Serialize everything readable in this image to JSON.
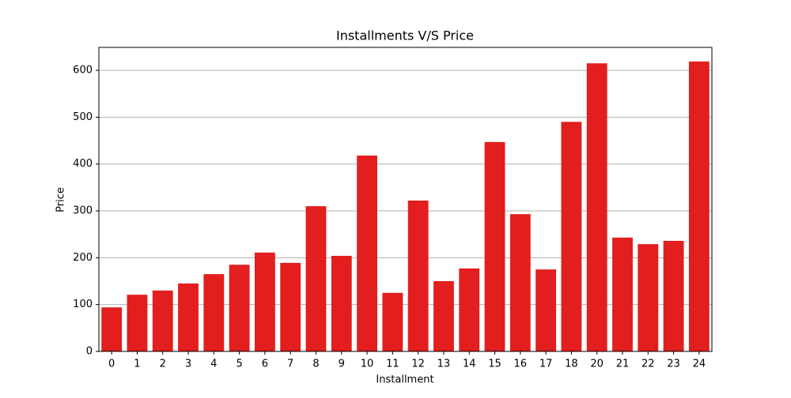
{
  "chart_data": {
    "type": "bar",
    "title": "Installments V/S Price",
    "x_label": "Installment",
    "y_label": "Price",
    "categories": [
      "0",
      "1",
      "2",
      "3",
      "4",
      "5",
      "6",
      "7",
      "8",
      "9",
      "10",
      "11",
      "12",
      "13",
      "14",
      "15",
      "16",
      "17",
      "18",
      "20",
      "21",
      "22",
      "23",
      "24"
    ],
    "values": [
      94,
      121,
      130,
      145,
      165,
      185,
      211,
      189,
      310,
      204,
      418,
      125,
      322,
      150,
      177,
      447,
      293,
      175,
      490,
      615,
      243,
      229,
      236,
      619
    ],
    "color": "#e31e1e",
    "ylim": [
      0,
      649
    ],
    "yticks": [
      0,
      100,
      200,
      300,
      400,
      500,
      600
    ],
    "grid": true
  }
}
